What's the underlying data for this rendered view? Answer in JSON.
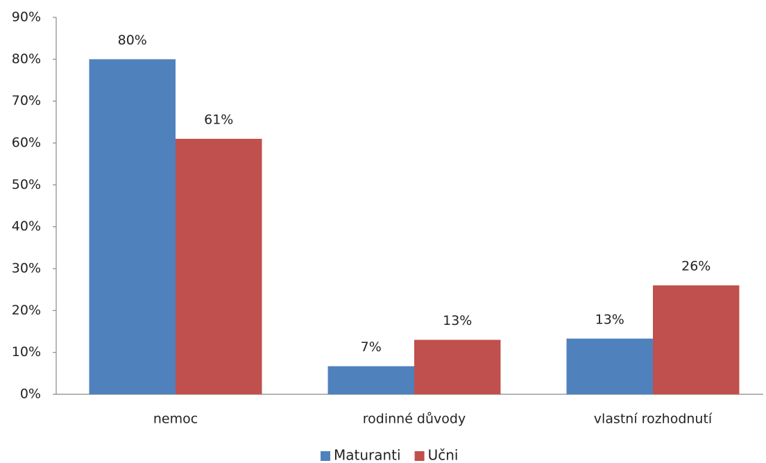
{
  "chart_data": {
    "type": "bar",
    "categories": [
      "nemoc",
      "rodinné důvody",
      "vlastní rozhodnutí"
    ],
    "series": [
      {
        "name": "Maturanti",
        "color": "#4f81bd",
        "values": [
          80,
          6.7,
          13.3
        ],
        "value_labels": [
          "80%",
          "7%",
          "13%"
        ]
      },
      {
        "name": "Učni",
        "color": "#c0504d",
        "values": [
          61,
          13,
          26
        ],
        "value_labels": [
          "61%",
          "13%",
          "26%"
        ]
      }
    ],
    "ylim": [
      0,
      90
    ],
    "yticks": [
      {
        "value": 0,
        "label": "0%"
      },
      {
        "value": 10,
        "label": "10%"
      },
      {
        "value": 20,
        "label": "20%"
      },
      {
        "value": 30,
        "label": "30%"
      },
      {
        "value": 40,
        "label": "40%"
      },
      {
        "value": 50,
        "label": "50%"
      },
      {
        "value": 60,
        "label": "60%"
      },
      {
        "value": 70,
        "label": "70%"
      },
      {
        "value": 80,
        "label": "80%"
      },
      {
        "value": 90,
        "label": "90%"
      }
    ],
    "grid": false,
    "legend": "bottom"
  }
}
